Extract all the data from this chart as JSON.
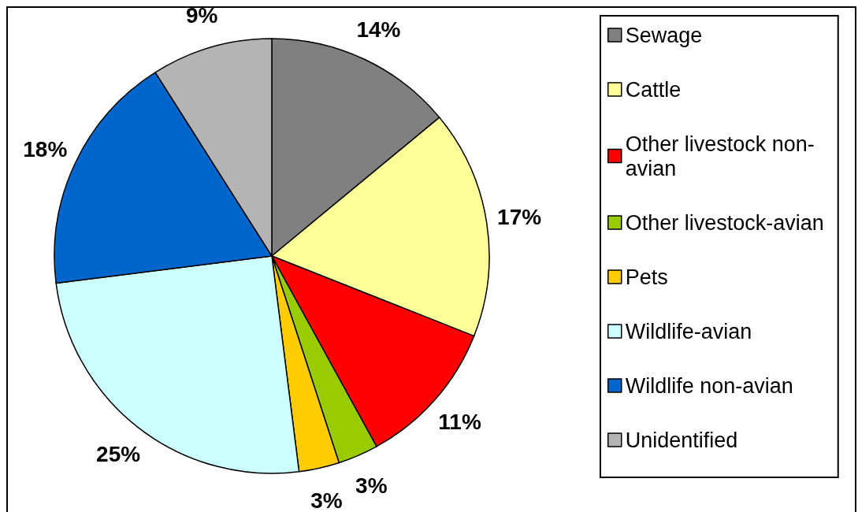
{
  "chart_data": {
    "type": "pie",
    "categories": [
      "Sewage",
      "Cattle",
      "Other livestock non-avian",
      "Other livestock-avian",
      "Pets",
      "Wildlife-avian",
      "Wildlife non-avian",
      "Unidentified"
    ],
    "values": [
      14,
      17,
      11,
      3,
      3,
      25,
      18,
      9
    ],
    "colors": [
      "#808080",
      "#ffff99",
      "#ff0000",
      "#99cc00",
      "#ffcc00",
      "#ccffff",
      "#0066cc",
      "#b4b4b4"
    ],
    "value_labels": [
      "14%",
      "17%",
      "11%",
      "3%",
      "3%",
      "25%",
      "18%",
      "9%"
    ],
    "legend": "right"
  }
}
